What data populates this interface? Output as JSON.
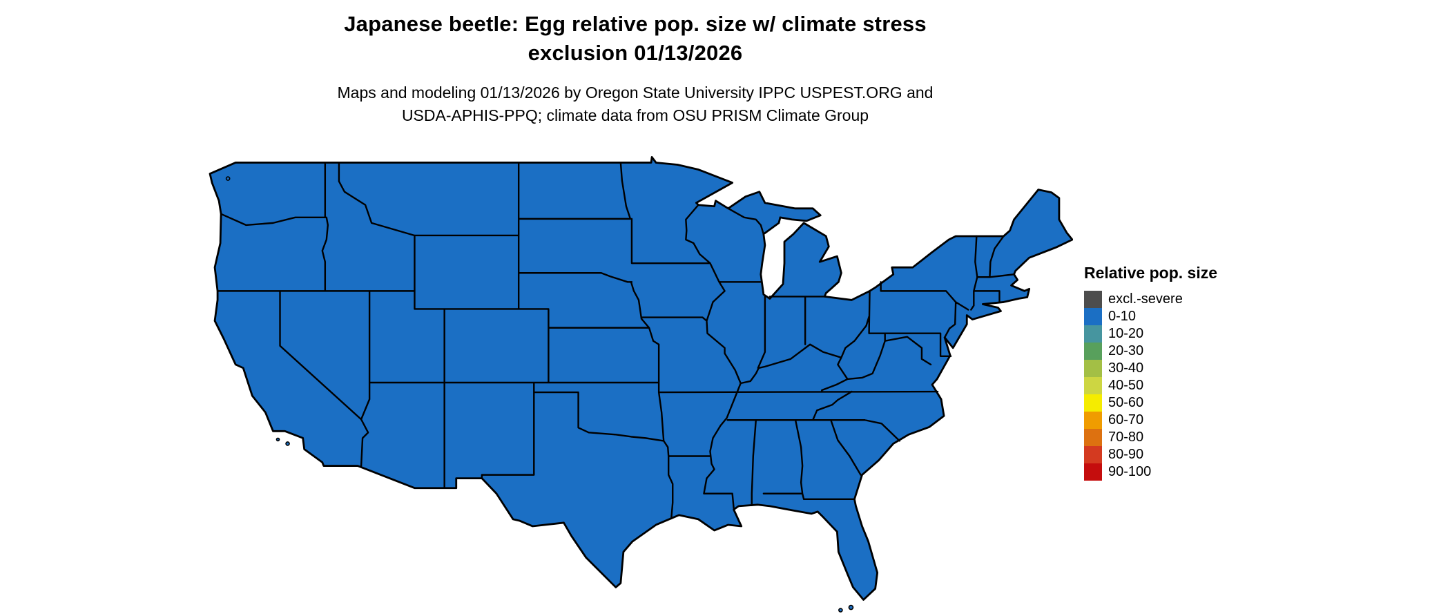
{
  "header": {
    "title_line1": "Japanese beetle: Egg relative pop. size w/ climate stress",
    "title_line2": "exclusion 01/13/2026",
    "subtitle_line1": "Maps and modeling 01/13/2026 by Oregon State University IPPC USPEST.ORG and",
    "subtitle_line2": "USDA-APHIS-PPQ; climate data from OSU PRISM Climate Group"
  },
  "map": {
    "region": "Continental United States",
    "fill_category": "0-10",
    "fill_color": "#1b6fc4",
    "border_color": "#000000"
  },
  "legend": {
    "title": "Relative pop. size",
    "items": [
      {
        "label": "excl.-severe",
        "color": "#4d4d4d"
      },
      {
        "label": "0-10",
        "color": "#1b6fc4"
      },
      {
        "label": "10-20",
        "color": "#46959f"
      },
      {
        "label": "20-30",
        "color": "#58a05c"
      },
      {
        "label": "30-40",
        "color": "#a3bf45"
      },
      {
        "label": "40-50",
        "color": "#cdd642"
      },
      {
        "label": "50-60",
        "color": "#f5ec00"
      },
      {
        "label": "60-70",
        "color": "#f09c00"
      },
      {
        "label": "70-80",
        "color": "#dd7110"
      },
      {
        "label": "80-90",
        "color": "#d43a20"
      },
      {
        "label": "90-100",
        "color": "#c50d0d"
      }
    ]
  }
}
